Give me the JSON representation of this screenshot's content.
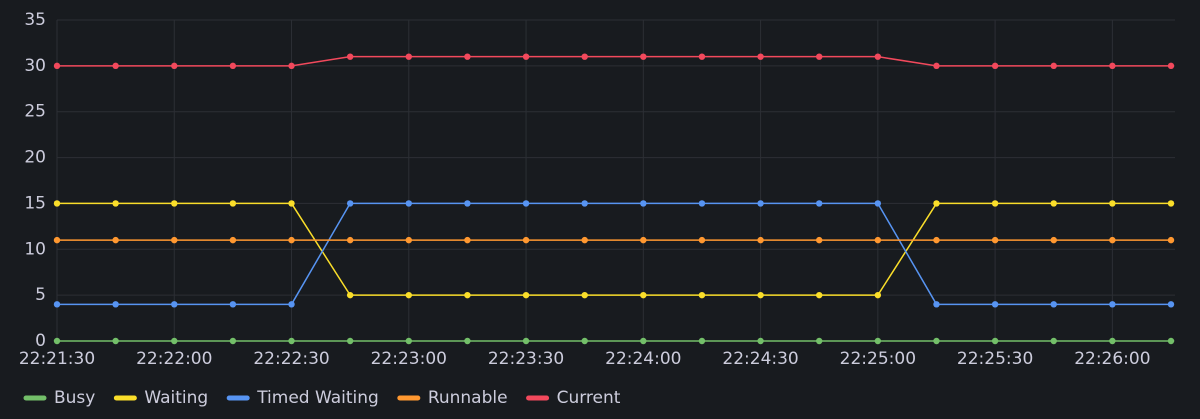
{
  "chart_data": {
    "type": "line",
    "x": [
      "22:21:30",
      "22:21:45",
      "22:22:00",
      "22:22:15",
      "22:22:30",
      "22:22:45",
      "22:23:00",
      "22:23:15",
      "22:23:30",
      "22:23:45",
      "22:24:00",
      "22:24:15",
      "22:24:30",
      "22:24:45",
      "22:25:00",
      "22:25:15",
      "22:25:30",
      "22:25:45",
      "22:26:00",
      "22:26:15"
    ],
    "xlim": [
      "22:21:30",
      "22:26:15"
    ],
    "xticks": [
      "22:21:30",
      "22:22:00",
      "22:22:30",
      "22:23:00",
      "22:23:30",
      "22:24:00",
      "22:24:30",
      "22:25:00",
      "22:25:30",
      "22:26:00"
    ],
    "ylim": [
      0,
      35
    ],
    "yticks": [
      0,
      5,
      10,
      15,
      20,
      25,
      30,
      35
    ],
    "grid": true,
    "legend": "bottom",
    "series": [
      {
        "name": "Busy",
        "color": "#73bf69",
        "values": [
          0,
          0,
          0,
          0,
          0,
          0,
          0,
          0,
          0,
          0,
          0,
          0,
          0,
          0,
          0,
          0,
          0,
          0,
          0,
          0
        ]
      },
      {
        "name": "Waiting",
        "color": "#fade2a",
        "values": [
          15,
          15,
          15,
          15,
          15,
          5,
          5,
          5,
          5,
          5,
          5,
          5,
          5,
          5,
          5,
          15,
          15,
          15,
          15,
          15
        ]
      },
      {
        "name": "Timed Waiting",
        "color": "#5794f2",
        "values": [
          4,
          4,
          4,
          4,
          4,
          15,
          15,
          15,
          15,
          15,
          15,
          15,
          15,
          15,
          15,
          4,
          4,
          4,
          4,
          4
        ]
      },
      {
        "name": "Runnable",
        "color": "#ff9830",
        "values": [
          11,
          11,
          11,
          11,
          11,
          11,
          11,
          11,
          11,
          11,
          11,
          11,
          11,
          11,
          11,
          11,
          11,
          11,
          11,
          11
        ]
      },
      {
        "name": "Current",
        "color": "#f2495c",
        "values": [
          30,
          30,
          30,
          30,
          30,
          31,
          31,
          31,
          31,
          31,
          31,
          31,
          31,
          31,
          31,
          30,
          30,
          30,
          30,
          30
        ]
      }
    ]
  }
}
